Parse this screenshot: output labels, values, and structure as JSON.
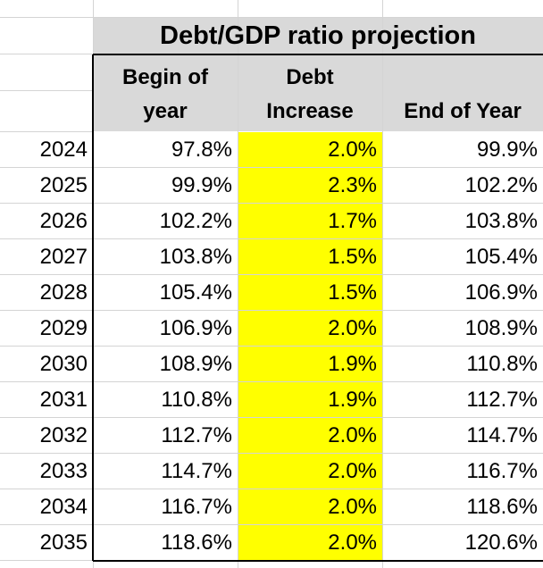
{
  "sheet": {
    "title": "Debt/GDP ratio projection",
    "columns": [
      {
        "line1": "Begin of",
        "line2": "year"
      },
      {
        "line1": "Debt",
        "line2": "Increase"
      },
      {
        "line1": "",
        "line2": "End of Year"
      }
    ],
    "rows": [
      {
        "year": "2024",
        "begin": "97.8%",
        "increase": "2.0%",
        "end": "99.9%"
      },
      {
        "year": "2025",
        "begin": "99.9%",
        "increase": "2.3%",
        "end": "102.2%"
      },
      {
        "year": "2026",
        "begin": "102.2%",
        "increase": "1.7%",
        "end": "103.8%"
      },
      {
        "year": "2027",
        "begin": "103.8%",
        "increase": "1.5%",
        "end": "105.4%"
      },
      {
        "year": "2028",
        "begin": "105.4%",
        "increase": "1.5%",
        "end": "106.9%"
      },
      {
        "year": "2029",
        "begin": "106.9%",
        "increase": "2.0%",
        "end": "108.9%"
      },
      {
        "year": "2030",
        "begin": "108.9%",
        "increase": "1.9%",
        "end": "110.8%"
      },
      {
        "year": "2031",
        "begin": "110.8%",
        "increase": "1.9%",
        "end": "112.7%"
      },
      {
        "year": "2032",
        "begin": "112.7%",
        "increase": "2.0%",
        "end": "114.7%"
      },
      {
        "year": "2033",
        "begin": "114.7%",
        "increase": "2.0%",
        "end": "116.7%"
      },
      {
        "year": "2034",
        "begin": "116.7%",
        "increase": "2.0%",
        "end": "118.6%"
      },
      {
        "year": "2035",
        "begin": "118.6%",
        "increase": "2.0%",
        "end": "120.6%"
      }
    ]
  },
  "colors": {
    "header_fill": "#d9d9d9",
    "highlight_fill": "#ffff00",
    "gridline": "#d4d4d4",
    "border": "#000000"
  }
}
